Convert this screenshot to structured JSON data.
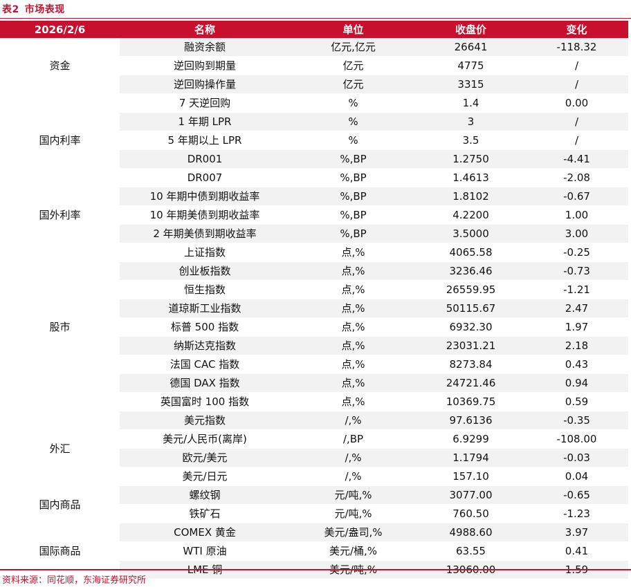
{
  "caption": {
    "num": "表2",
    "title": "市场表现"
  },
  "header": {
    "date": "2026/2/6",
    "name": "名称",
    "unit": "单位",
    "close": "收盘价",
    "change": "变化"
  },
  "groups": [
    {
      "label": "资金",
      "rows": [
        {
          "name": "融资余额",
          "unit": "亿元,亿元",
          "close": "26641",
          "change": "-118.32"
        },
        {
          "name": "逆回购到期量",
          "unit": "亿元",
          "close": "4775",
          "change": "/"
        },
        {
          "name": "逆回购操作量",
          "unit": "亿元",
          "close": "3315",
          "change": "/"
        }
      ]
    },
    {
      "label": "国内利率",
      "rows": [
        {
          "name": "7 天逆回购",
          "unit": "%",
          "close": "1.4",
          "change": "0.00"
        },
        {
          "name": "1 年期 LPR",
          "unit": "%",
          "close": "3",
          "change": "/"
        },
        {
          "name": "5 年期以上 LPR",
          "unit": "%",
          "close": "3.5",
          "change": "/"
        },
        {
          "name": "DR001",
          "unit": "%,BP",
          "close": "1.2750",
          "change": "-4.41"
        },
        {
          "name": "DR007",
          "unit": "%,BP",
          "close": "1.4613",
          "change": "-2.08"
        }
      ]
    },
    {
      "label": "国外利率",
      "rows": [
        {
          "name": "10 年期中债到期收益率",
          "unit": "%,BP",
          "close": "1.8102",
          "change": "-0.67"
        },
        {
          "name": "10 年期美债到期收益率",
          "unit": "%,BP",
          "close": "4.2200",
          "change": "1.00"
        },
        {
          "name": "2 年期美债到期收益率",
          "unit": "%,BP",
          "close": "3.5000",
          "change": "3.00"
        }
      ]
    },
    {
      "label": "股市",
      "rows": [
        {
          "name": "上证指数",
          "unit": "点,%",
          "close": "4065.58",
          "change": "-0.25"
        },
        {
          "name": "创业板指数",
          "unit": "点,%",
          "close": "3236.46",
          "change": "-0.73"
        },
        {
          "name": "恒生指数",
          "unit": "点,%",
          "close": "26559.95",
          "change": "-1.21"
        },
        {
          "name": "道琼斯工业指数",
          "unit": "点,%",
          "close": "50115.67",
          "change": "2.47"
        },
        {
          "name": "标普 500 指数",
          "unit": "点,%",
          "close": "6932.30",
          "change": "1.97"
        },
        {
          "name": "纳斯达克指数",
          "unit": "点,%",
          "close": "23031.21",
          "change": "2.18"
        },
        {
          "name": "法国 CAC 指数",
          "unit": "点,%",
          "close": "8273.84",
          "change": "0.43"
        },
        {
          "name": "德国 DAX 指数",
          "unit": "点,%",
          "close": "24721.46",
          "change": "0.94"
        },
        {
          "name": "英国富时 100 指数",
          "unit": "点,%",
          "close": "10369.75",
          "change": "0.59"
        }
      ]
    },
    {
      "label": "外汇",
      "rows": [
        {
          "name": "美元指数",
          "unit": "/,%",
          "close": "97.6136",
          "change": "-0.35"
        },
        {
          "name": "美元/人民币(离岸)",
          "unit": "/,BP",
          "close": "6.9299",
          "change": "-108.00"
        },
        {
          "name": "欧元/美元",
          "unit": "/,%",
          "close": "1.1794",
          "change": "-0.03"
        },
        {
          "name": "美元/日元",
          "unit": "/,%",
          "close": "157.10",
          "change": "0.04"
        }
      ]
    },
    {
      "label": "国内商品",
      "rows": [
        {
          "name": "螺纹钢",
          "unit": "元/吨,%",
          "close": "3077.00",
          "change": "-0.65"
        },
        {
          "name": "铁矿石",
          "unit": "元/吨,%",
          "close": "760.50",
          "change": "-1.23"
        }
      ]
    },
    {
      "label": "国际商品",
      "rows": [
        {
          "name": "COMEX 黄金",
          "unit": "美元/盎司,%",
          "close": "4988.60",
          "change": "3.97"
        },
        {
          "name": "WTI 原油",
          "unit": "美元/桶,%",
          "close": "63.55",
          "change": "0.41"
        },
        {
          "name": "LME 铜",
          "unit": "美元/吨,%",
          "close": "13060.00",
          "change": "1.59"
        }
      ]
    }
  ],
  "source": "资料来源：同花顺，东海证券研究所"
}
